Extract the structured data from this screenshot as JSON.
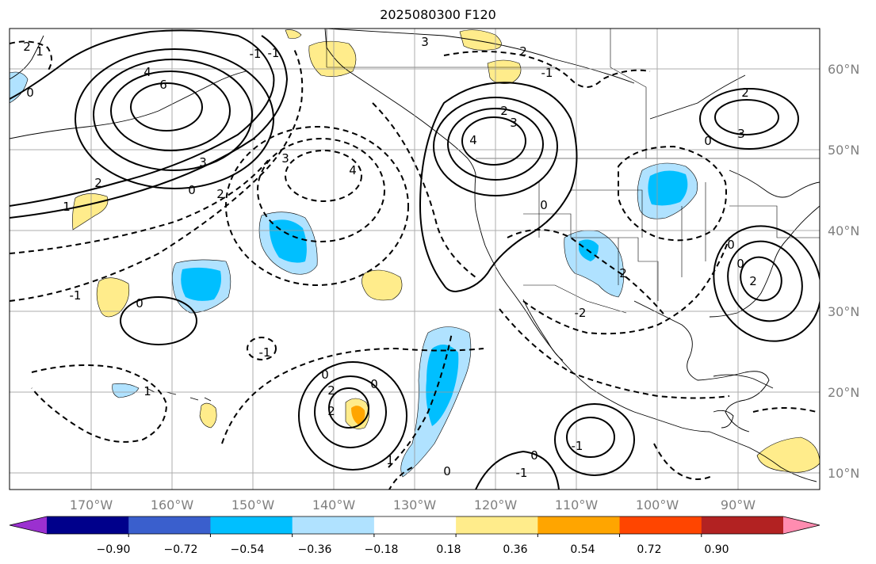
{
  "title": "2025080300 F120",
  "map": {
    "projection": "equirectangular",
    "lon_range": [
      -180,
      -80
    ],
    "lat_range": [
      8,
      65
    ],
    "grid": true,
    "lon_tick_labels": [
      "170°W",
      "160°W",
      "150°W",
      "140°W",
      "130°W",
      "120°W",
      "110°W",
      "100°W",
      "90°W"
    ],
    "lat_tick_labels": [
      "10°N",
      "20°N",
      "30°N",
      "40°N",
      "50°N",
      "60°N"
    ],
    "contour_labels": [
      "2",
      "1",
      "0",
      "4",
      "6",
      "0",
      "3",
      "2",
      "1",
      "-",
      "3",
      "2",
      "-1",
      "0",
      "3",
      "4",
      "0",
      "-1",
      "2",
      "3",
      "4",
      "0",
      "2",
      "3",
      "2",
      "2",
      "0",
      "2",
      "-1",
      "0",
      "2",
      "0",
      "-2",
      "0",
      "-1",
      "-1",
      "1",
      "2",
      "1",
      "-1",
      "0",
      "-1",
      "0"
    ]
  },
  "colorbar": {
    "colors": [
      "#9b30d0",
      "#00008b",
      "#3a5fcd",
      "#00bfff",
      "#b0e2ff",
      "#ffffff",
      "#ffec8b",
      "#ffa500",
      "#ff4500",
      "#b22222",
      "#ff8cb0"
    ],
    "tick_labels": [
      "−0.90",
      "−0.72",
      "−0.54",
      "−0.36",
      "−0.18",
      "0.18",
      "0.36",
      "0.54",
      "0.72",
      "0.90"
    ]
  }
}
